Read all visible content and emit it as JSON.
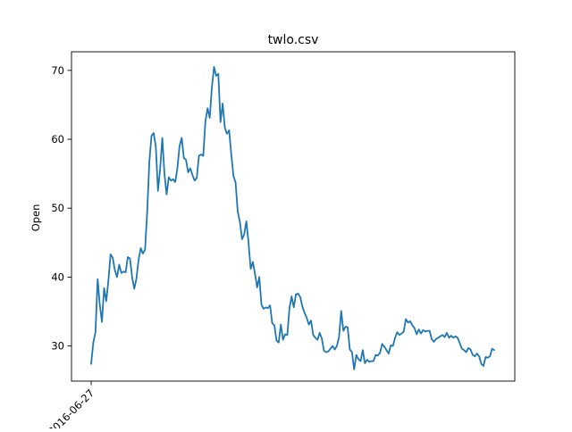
{
  "chart_data": {
    "type": "line",
    "title": "twlo.csv",
    "xlabel": "",
    "ylabel": "Open",
    "ylim": [
      24.9,
      72.7
    ],
    "y_ticks": [
      30,
      40,
      50,
      60,
      70
    ],
    "x_tick_labels": [
      "2016-06-27"
    ],
    "grid": false,
    "legend": "none",
    "line_color": "#1f77b4",
    "values": [
      27.4,
      30.5,
      32.0,
      39.7,
      36.0,
      33.5,
      38.4,
      36.5,
      39.5,
      43.3,
      42.8,
      41.0,
      40.0,
      41.8,
      40.6,
      40.8,
      40.7,
      42.9,
      42.7,
      40.0,
      38.3,
      39.8,
      42.5,
      44.2,
      43.4,
      44.0,
      49.5,
      56.8,
      60.5,
      60.9,
      58.9,
      52.5,
      55.7,
      60.2,
      55.0,
      52.0,
      54.5,
      54.0,
      54.2,
      53.8,
      55.8,
      59.0,
      60.2,
      57.3,
      57.0,
      55.2,
      55.8,
      54.8,
      54.0,
      54.4,
      57.6,
      57.8,
      57.6,
      62.6,
      64.5,
      63.1,
      67.5,
      70.5,
      69.2,
      69.5,
      62.5,
      65.2,
      61.7,
      60.8,
      61.3,
      57.8,
      54.7,
      53.7,
      49.5,
      48.0,
      45.5,
      46.2,
      48.1,
      45.0,
      41.2,
      42.2,
      40.5,
      38.5,
      40.0,
      36.0,
      35.4,
      35.6,
      35.5,
      35.9,
      33.3,
      33.0,
      30.8,
      30.5,
      33.1,
      30.9,
      31.7,
      31.6,
      35.5,
      37.2,
      35.6,
      37.5,
      37.6,
      37.1,
      35.7,
      34.8,
      34.1,
      33.1,
      33.7,
      31.6,
      31.2,
      30.9,
      31.9,
      31.1,
      29.3,
      29.1,
      29.2,
      29.6,
      30.0,
      29.5,
      30.0,
      31.3,
      35.1,
      32.2,
      32.8,
      32.7,
      29.5,
      29.1,
      26.6,
      28.7,
      28.1,
      27.8,
      29.4,
      27.5,
      28.0,
      27.7,
      27.8,
      27.8,
      28.7,
      28.6,
      29.0,
      30.3,
      29.9,
      29.4,
      28.9,
      30.1,
      30.0,
      31.2,
      32.0,
      31.6,
      31.8,
      32.1,
      33.9,
      33.4,
      33.6,
      33.0,
      32.6,
      31.7,
      32.4,
      31.8,
      32.3,
      32.1,
      32.2,
      32.2,
      31.0,
      30.6,
      31.0,
      31.2,
      31.4,
      31.6,
      31.3,
      31.9,
      31.2,
      31.5,
      31.2,
      31.4,
      31.2,
      30.4,
      29.6,
      29.4,
      29.1,
      29.7,
      29.5,
      28.7,
      28.5,
      28.9,
      28.5,
      27.4,
      27.1,
      28.4,
      28.3,
      28.5,
      29.6,
      29.4
    ]
  }
}
